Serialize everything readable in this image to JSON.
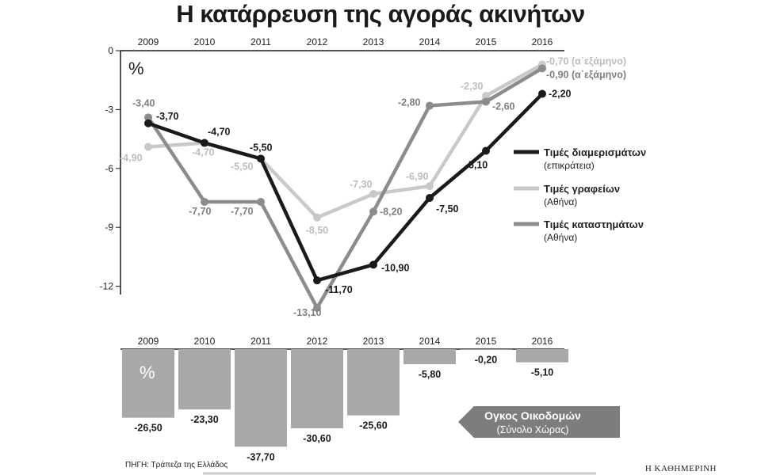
{
  "title": "Η κατάρρευση της αγοράς ακινήτων",
  "source": "ΠΗΓΗ: Τράπεζα της Ελλάδος",
  "brand": "Η ΚΑΘΗΜΕΡΙΝΗ",
  "colors": {
    "black": "#1a1a1a",
    "light": "#c9c9c9",
    "mid": "#8c8c8c",
    "bar": "#a8a8a8",
    "arrow_box": "#7d7d7d"
  },
  "chart_data": [
    {
      "type": "line",
      "unit_label": "%",
      "x": [
        "2009",
        "2010",
        "2011",
        "2012",
        "2013",
        "2014",
        "2015",
        "2016"
      ],
      "yticks": [
        "0",
        "-3",
        "-6",
        "-9",
        "-12"
      ],
      "ylim": [
        -13.5,
        0
      ],
      "grid": false,
      "legend_position": "right",
      "series": [
        {
          "name": "Τιμές διαμερισμάτων",
          "subtitle": "(επικράτεια)",
          "color": "#1a1a1a",
          "values": [
            -3.7,
            -4.7,
            -5.5,
            -11.7,
            -10.9,
            -7.5,
            -5.1,
            -2.2
          ],
          "labels": [
            "-3,70",
            "-4,70",
            "-5,50",
            "-11,70",
            "-10,90",
            "-7,50",
            "-5,10",
            "-2,20"
          ]
        },
        {
          "name": "Τιμές γραφείων",
          "subtitle": "(Αθήνα)",
          "color": "#c9c9c9",
          "values": [
            -4.9,
            -4.7,
            -5.5,
            -8.5,
            -7.3,
            -6.9,
            -2.3,
            -0.7
          ],
          "labels": [
            "-4,90",
            "-4,70",
            "-5,50",
            "-8,50",
            "-7,30",
            "-6,90",
            "-2,30",
            "-0,70 (α΄εξάμηνο)"
          ]
        },
        {
          "name": "Τιμές καταστημάτων",
          "subtitle": "(Αθήνα)",
          "color": "#8c8c8c",
          "values": [
            -3.4,
            -7.7,
            -7.7,
            -13.1,
            -8.2,
            -2.8,
            -2.6,
            -0.9
          ],
          "labels": [
            "-3,40",
            "-7,70",
            "-7,70",
            "-13,10",
            "-8,20",
            "-2,80",
            "-2,60",
            "-0,90 (α΄εξάμηνο)"
          ]
        }
      ]
    },
    {
      "type": "bar",
      "unit_label": "%",
      "categories": [
        "2009",
        "2010",
        "2011",
        "2012",
        "2013",
        "2014",
        "2015",
        "2016"
      ],
      "values": [
        -26.5,
        -23.3,
        -37.7,
        -30.6,
        -25.6,
        -5.8,
        -0.2,
        -5.1
      ],
      "labels": [
        "-26,50",
        "-23,30",
        "-37,70",
        "-30,60",
        "-25,60",
        "-5,80",
        "-0,20",
        "-5,10"
      ],
      "series_label": "Ογκος Οικοδομών",
      "series_sublabel": "(Σύνολο Χώρας)"
    }
  ]
}
